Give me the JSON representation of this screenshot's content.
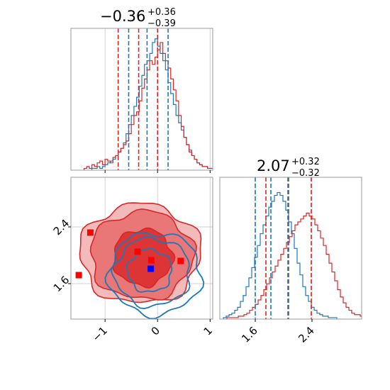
{
  "chart_data": {
    "type": "corner",
    "colors": {
      "red": "#d62728",
      "blue": "#1f77b4",
      "marker_blue": "#0000ff",
      "marker_red": "#ff0000"
    },
    "param1": {
      "title_value": "−0.36",
      "title_plus": "+0.36",
      "title_minus": "−0.39",
      "range": [
        -1.65,
        1.05
      ],
      "ticks": [
        -1,
        0,
        1
      ],
      "tick_labels": [
        "−1",
        "0",
        "1"
      ],
      "red_quantiles": [
        -0.75,
        -0.36,
        0.0
      ],
      "blue_quantiles": [
        -0.55,
        -0.2,
        0.2
      ],
      "red_hist": {
        "start": -1.4,
        "width": 0.05,
        "counts": [
          1,
          2,
          1,
          3,
          2,
          4,
          5,
          3,
          6,
          5,
          4,
          7,
          8,
          10,
          12,
          14,
          16,
          20,
          25,
          30,
          32,
          38,
          45,
          50,
          55,
          60,
          58,
          62,
          66,
          70,
          64,
          60,
          56,
          50,
          44,
          38,
          30,
          24,
          18,
          14,
          10,
          8,
          6,
          4,
          3,
          2,
          2,
          1,
          1,
          1
        ]
      },
      "blue_hist": {
        "start": -1.25,
        "width": 0.05,
        "counts": [
          1,
          1,
          2,
          1,
          2,
          3,
          4,
          5,
          6,
          8,
          10,
          12,
          15,
          20,
          25,
          30,
          35,
          40,
          46,
          52,
          58,
          60,
          64,
          70,
          72,
          68,
          64,
          60,
          55,
          48,
          42,
          36,
          30,
          26,
          22,
          18,
          14,
          11,
          8,
          6,
          4,
          3,
          2,
          2,
          1,
          1,
          1,
          1,
          1,
          1
        ]
      }
    },
    "param2": {
      "title_value": "2.07",
      "title_plus": "+0.32",
      "title_minus": "−0.32",
      "range": [
        1.1,
        3.1
      ],
      "ticks": [
        1.6,
        2.4
      ],
      "tick_labels": [
        "1.6",
        "2.4"
      ],
      "red_quantiles": [
        1.75,
        2.07,
        2.39
      ],
      "blue_quantiles": [
        1.6,
        1.82,
        2.06
      ],
      "red_hist": {
        "start": 1.2,
        "width": 0.04,
        "counts": [
          1,
          1,
          1,
          1,
          2,
          2,
          3,
          4,
          6,
          8,
          10,
          13,
          16,
          20,
          24,
          28,
          32,
          36,
          40,
          44,
          48,
          52,
          56,
          60,
          64,
          66,
          68,
          70,
          72,
          70,
          68,
          64,
          60,
          55,
          50,
          44,
          38,
          32,
          26,
          20,
          15,
          11,
          8,
          6,
          4,
          3,
          3,
          2,
          2,
          1
        ]
      },
      "blue_hist": {
        "start": 1.15,
        "width": 0.04,
        "counts": [
          1,
          2,
          3,
          4,
          6,
          8,
          12,
          16,
          22,
          28,
          35,
          42,
          50,
          58,
          64,
          70,
          76,
          80,
          84,
          86,
          84,
          80,
          74,
          66,
          58,
          48,
          38,
          30,
          22,
          16,
          12,
          8,
          6,
          4,
          3,
          2,
          2,
          1,
          1,
          1
        ]
      }
    },
    "joint": {
      "red_levels": [
        {
          "level": 0.39,
          "rx": 0.56,
          "ry": 0.4,
          "cx": -0.28,
          "cy": 1.97
        },
        {
          "level": 0.86,
          "rx": 0.98,
          "ry": 0.62,
          "cx": -0.3,
          "cy": 2.0
        },
        {
          "level": 0.99,
          "rx": 1.15,
          "ry": 0.7,
          "cx": -0.33,
          "cy": 2.02
        }
      ],
      "blue_levels": [
        {
          "level": 0.39,
          "rx": 0.42,
          "ry": 0.3,
          "cx": -0.15,
          "cy": 1.78
        },
        {
          "level": 0.86,
          "rx": 0.72,
          "ry": 0.48,
          "cx": -0.1,
          "cy": 1.76
        },
        {
          "level": 0.99,
          "rx": 0.88,
          "ry": 0.58,
          "cx": -0.05,
          "cy": 1.74
        }
      ],
      "red_markers": [
        {
          "x": -1.5,
          "y": 1.72
        },
        {
          "x": -1.28,
          "y": 2.32
        },
        {
          "x": -0.38,
          "y": 2.05
        },
        {
          "x": -0.12,
          "y": 1.93
        },
        {
          "x": 0.44,
          "y": 1.92
        }
      ],
      "blue_markers": [
        {
          "x": -0.13,
          "y": 1.81
        }
      ]
    }
  }
}
